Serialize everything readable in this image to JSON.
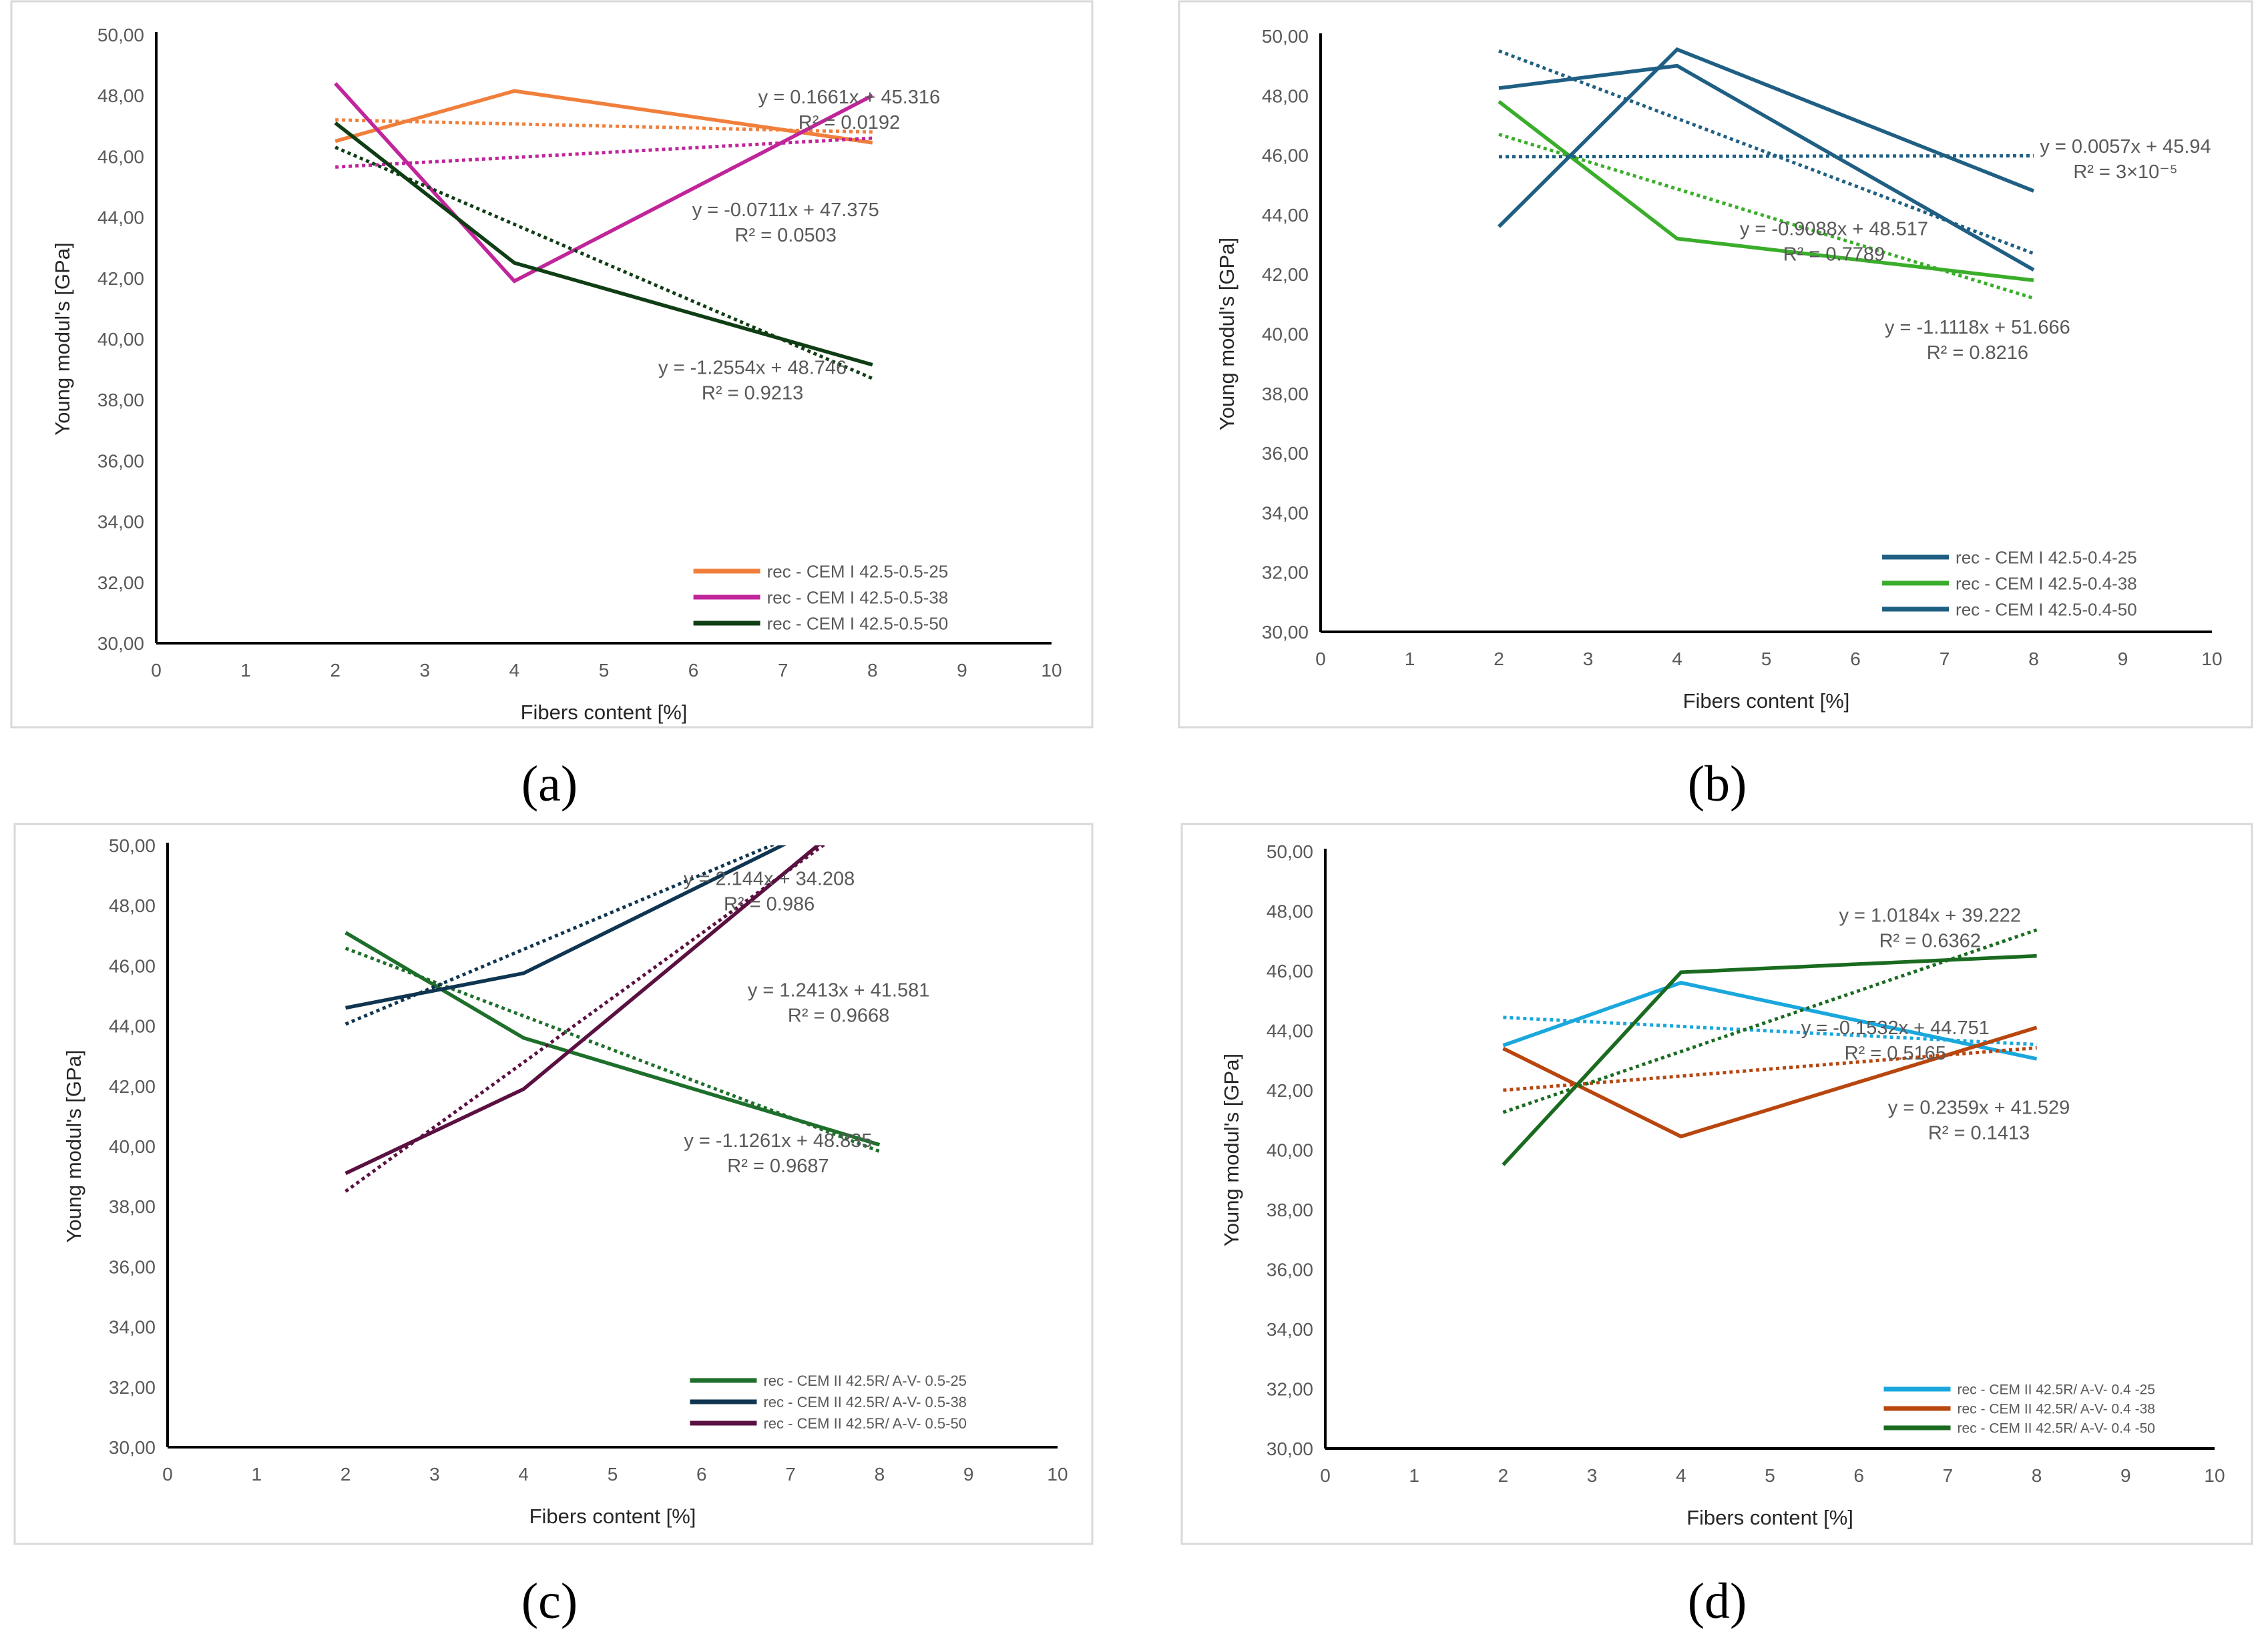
{
  "chart_data": [
    {
      "panel_label": "(a)",
      "type": "line",
      "xlabel": "Fibers content [%]",
      "ylabel": "Young modul's [GPa]",
      "xlim": [
        0,
        10
      ],
      "ylim": [
        30,
        50
      ],
      "x_ticks": [
        "0",
        "1",
        "2",
        "3",
        "4",
        "5",
        "6",
        "7",
        "8",
        "9",
        "10"
      ],
      "y_ticks": [
        "30,00",
        "32,00",
        "34,00",
        "36,00",
        "38,00",
        "40,00",
        "42,00",
        "44,00",
        "46,00",
        "48,00",
        "50,00"
      ],
      "legend_position": "bottom-right",
      "x": [
        2,
        4,
        8
      ],
      "series": [
        {
          "name": "rec - CEM I 42.5-0.5-25",
          "color": "#f07f3c",
          "values": [
            46.5,
            48.15,
            46.45
          ],
          "trend": [
            47.2,
            46.8
          ]
        },
        {
          "name": "rec - CEM I 42.5-0.5-38",
          "color": "#c0259a",
          "values": [
            48.4,
            41.9,
            48.0
          ],
          "trend": [
            45.65,
            46.6
          ]
        },
        {
          "name": "rec - CEM I 42.5-0.5-50",
          "color": "#0f3d14",
          "values": [
            47.1,
            42.5,
            39.15
          ],
          "trend": [
            46.3,
            38.7
          ]
        }
      ],
      "annotations": [
        {
          "eq": "y = 0.1661x + 45.316",
          "r2": "R² = 0.0192",
          "x": 7.74,
          "y": 47.96
        },
        {
          "eq": "y = -0.0711x + 47.375",
          "r2": "R² = 0.0503",
          "x": 7.03,
          "y": 44.25
        },
        {
          "eq": "y = -1.2554x + 48.746",
          "r2": "R² = 0.9213",
          "x": 6.66,
          "y": 39.07
        }
      ]
    },
    {
      "panel_label": "(b)",
      "type": "line",
      "xlabel": "Fibers content [%]",
      "ylabel": "Young modul's [GPa]",
      "xlim": [
        0,
        10
      ],
      "ylim": [
        30,
        50
      ],
      "x_ticks": [
        "0",
        "1",
        "2",
        "3",
        "4",
        "5",
        "6",
        "7",
        "8",
        "9",
        "10"
      ],
      "y_ticks": [
        "30,00",
        "32,00",
        "34,00",
        "36,00",
        "38,00",
        "40,00",
        "42,00",
        "44,00",
        "46,00",
        "48,00",
        "50,00"
      ],
      "legend_position": "bottom-right",
      "x": [
        2,
        4,
        8
      ],
      "series": [
        {
          "name": "rec - CEM I 42.5-0.4-25",
          "color": "#1f5f83",
          "values": [
            48.25,
            49.0,
            42.15
          ],
          "trend": [
            49.5,
            42.7
          ]
        },
        {
          "name": "rec - CEM I 42.5-0.4-38",
          "color": "#3aad2a",
          "values": [
            47.8,
            43.2,
            41.8
          ],
          "trend": [
            46.7,
            41.2
          ]
        },
        {
          "name": "rec - CEM I 42.5-0.4-50",
          "color": "#1f5f83",
          "values": [
            43.6,
            49.55,
            44.8
          ],
          "trend": [
            45.95,
            45.98
          ]
        }
      ],
      "annotations": [
        {
          "eq": "y = 0.0057x + 45.94",
          "r2": "R² = 3×10⁻⁵",
          "x": 9.03,
          "y": 46.31
        },
        {
          "eq": "y = -0.9088x + 48.517",
          "r2": "R² = 0.7789",
          "x": 5.76,
          "y": 43.54
        },
        {
          "eq": "y = -1.1118x + 51.666",
          "r2": "R² = 0.8216",
          "x": 7.37,
          "y": 40.24
        }
      ]
    },
    {
      "panel_label": "(c)",
      "type": "line",
      "xlabel": "Fibers content [%]",
      "ylabel": "Young modul's [GPa]",
      "xlim": [
        0,
        10
      ],
      "ylim": [
        30,
        50
      ],
      "x_ticks": [
        "0",
        "1",
        "2",
        "3",
        "4",
        "5",
        "6",
        "7",
        "8",
        "9",
        "10"
      ],
      "y_ticks": [
        "30,00",
        "32,00",
        "34,00",
        "36,00",
        "38,00",
        "40,00",
        "42,00",
        "44,00",
        "46,00",
        "48,00",
        "50,00"
      ],
      "legend_position": "bottom-right",
      "x": [
        2,
        4,
        8
      ],
      "series": [
        {
          "name": "rec - CEM II 42.5R/ A-V- 0.5-25",
          "color": "#1e6f2b",
          "values": [
            47.1,
            43.6,
            40.05
          ],
          "trend": [
            46.58,
            39.83
          ]
        },
        {
          "name": "rec - CEM II 42.5R/ A-V- 0.5-38",
          "color": "#0f3550",
          "values": [
            44.6,
            45.75,
            51.6
          ],
          "trend": [
            44.06,
            51.51
          ]
        },
        {
          "name": "rec - CEM II 42.5R/ A-V- 0.5-50",
          "color": "#5a1040",
          "values": [
            39.1,
            41.9,
            51.7
          ],
          "trend": [
            38.5,
            51.36
          ]
        }
      ],
      "annotations": [
        {
          "eq": "y = 2.144x + 34.208",
          "r2": "R² = 0.986",
          "x": 6.76,
          "y": 48.9
        },
        {
          "eq": "y = 1.2413x + 41.581",
          "r2": "R² = 0.9668",
          "x": 7.54,
          "y": 45.2
        },
        {
          "eq": "y = -1.1261x + 48.835",
          "r2": "R² = 0.9687",
          "x": 6.86,
          "y": 40.2
        }
      ]
    },
    {
      "panel_label": "(d)",
      "type": "line",
      "xlabel": "Fibers content [%]",
      "ylabel": "Young modul's [GPa]",
      "xlim": [
        0,
        10
      ],
      "ylim": [
        30,
        50
      ],
      "x_ticks": [
        "0",
        "1",
        "2",
        "3",
        "4",
        "5",
        "6",
        "7",
        "8",
        "9",
        "10"
      ],
      "y_ticks": [
        "30,00",
        "32,00",
        "34,00",
        "36,00",
        "38,00",
        "40,00",
        "42,00",
        "44,00",
        "46,00",
        "48,00",
        "50,00"
      ],
      "legend_position": "bottom-right",
      "x": [
        2,
        4,
        8
      ],
      "series": [
        {
          "name": "rec - CEM II 42.5R/ A-V- 0.4 -25",
          "color": "#1aa7dd",
          "values": [
            43.5,
            45.6,
            43.05
          ],
          "trend": [
            44.44,
            43.53
          ]
        },
        {
          "name": "rec - CEM II 42.5R/ A-V- 0.4 -38",
          "color": "#b8460e",
          "values": [
            43.4,
            40.45,
            44.1
          ],
          "trend": [
            42.0,
            43.42
          ]
        },
        {
          "name": "rec - CEM II 42.5R/ A-V- 0.4 -50",
          "color": "#1a6b20",
          "values": [
            39.5,
            45.95,
            46.5
          ],
          "trend": [
            41.26,
            47.37
          ]
        }
      ],
      "annotations": [
        {
          "eq": "y = 1.0184x + 39.222",
          "r2": "R² = 0.6362",
          "x": 6.8,
          "y": 47.87
        },
        {
          "eq": "y = -0.1532x + 44.751",
          "r2": "R² = 0.5165",
          "x": 6.41,
          "y": 44.1
        },
        {
          "eq": "y = 0.2359x + 41.529",
          "r2": "R² = 0.1413",
          "x": 7.35,
          "y": 41.43
        }
      ]
    }
  ]
}
